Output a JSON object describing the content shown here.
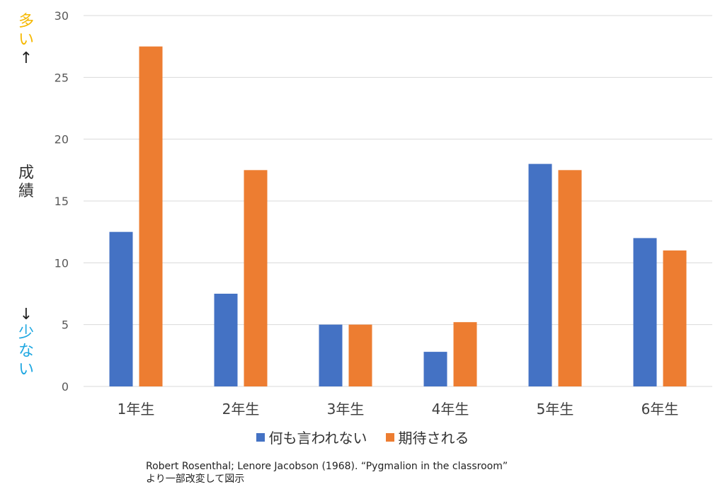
{
  "side_labels": {
    "top": [
      "多",
      "い",
      "↑"
    ],
    "middle": [
      "成",
      "績"
    ],
    "bottom": [
      "↓",
      "少",
      "な",
      "い"
    ],
    "top_color": "#f5b800",
    "bottom_color": "#1ea7e1",
    "arrow_color": "#222222"
  },
  "chart_data": {
    "type": "bar",
    "categories": [
      "1年生",
      "2年生",
      "3年生",
      "4年生",
      "5年生",
      "6年生"
    ],
    "series": [
      {
        "name": "何も言われない",
        "color": "#4472c4",
        "values": [
          12.5,
          7.5,
          5,
          2.8,
          18,
          12
        ]
      },
      {
        "name": "期待される",
        "color": "#ed7d31",
        "values": [
          27.5,
          17.5,
          5,
          5.2,
          17.5,
          11
        ]
      }
    ],
    "ylim": [
      0,
      30
    ],
    "yticks": [
      0,
      5,
      10,
      15,
      20,
      25,
      30
    ],
    "grid": true,
    "legend_position": "bottom"
  },
  "caption": {
    "line1": "Robert Rosenthal; Lenore Jacobson (1968). “Pygmalion in the classroom”",
    "line2": "より一部改変して図示"
  }
}
